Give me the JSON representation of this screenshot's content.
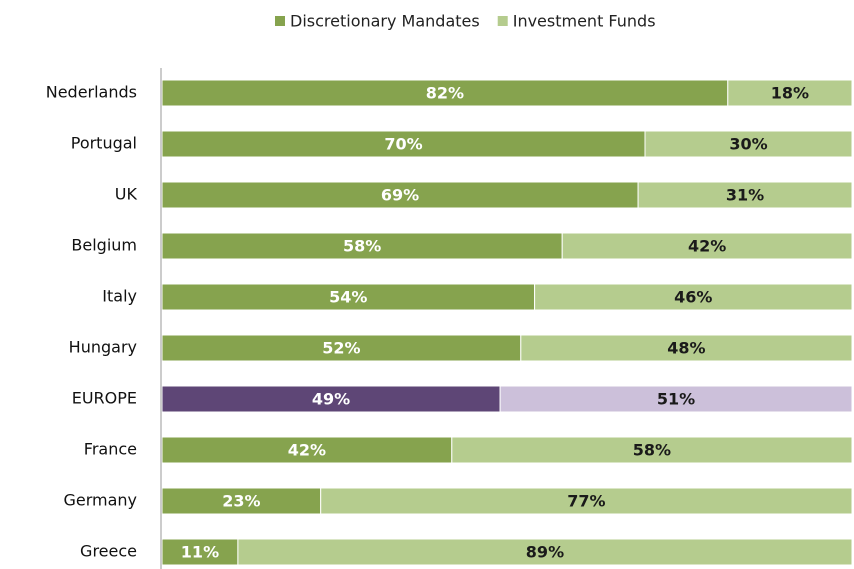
{
  "chart_data": {
    "type": "stacked-bar-horizontal",
    "categories": [
      "Nederlands",
      "Portugal",
      "UK",
      "Belgium",
      "Italy",
      "Hungary",
      "EUROPE",
      "France",
      "Germany",
      "Greece"
    ],
    "series": [
      {
        "name": "Discretionary Mandates",
        "color": "#86a34e",
        "colors": [
          "#86a34e",
          "#86a34e",
          "#86a34e",
          "#86a34e",
          "#86a34e",
          "#86a34e",
          "#5e4676",
          "#86a34e",
          "#86a34e",
          "#86a34e"
        ],
        "label_color": "#ffffff",
        "values": [
          82,
          70,
          69,
          58,
          54,
          52,
          49,
          42,
          23,
          11
        ],
        "value_labels": [
          "82%",
          "70%",
          "69%",
          "58%",
          "54%",
          "52%",
          "49%",
          "42%",
          "23%",
          "11%"
        ]
      },
      {
        "name": "Investment Funds",
        "color": "#b5cc8e",
        "colors": [
          "#b5cc8e",
          "#b5cc8e",
          "#b5cc8e",
          "#b5cc8e",
          "#b5cc8e",
          "#b5cc8e",
          "#ccc0da",
          "#b5cc8e",
          "#b5cc8e",
          "#b5cc8e"
        ],
        "label_color": "#1a1a1a",
        "values": [
          18,
          30,
          31,
          42,
          46,
          48,
          51,
          58,
          77,
          89
        ],
        "value_labels": [
          "18%",
          "30%",
          "31%",
          "42%",
          "46%",
          "48%",
          "51%",
          "58%",
          "77%",
          "89%"
        ]
      }
    ],
    "xlim": [
      0,
      100
    ],
    "legend": "top"
  }
}
